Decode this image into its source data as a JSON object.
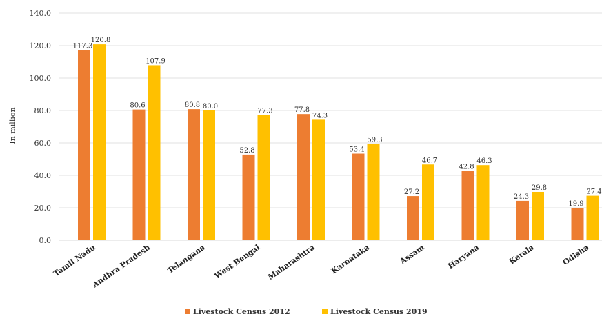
{
  "chart_data": {
    "type": "bar",
    "ylabel": "In million",
    "ylim": [
      0,
      140
    ],
    "yticks": [
      "0.0",
      "20.0",
      "40.0",
      "60.0",
      "80.0",
      "100.0",
      "120.0",
      "140.0"
    ],
    "grid": true,
    "legend_position": "bottom",
    "categories": [
      "Tamil Nadu",
      "Andhra Pradesh",
      "Telangana",
      "West Bengal",
      "Maharashtra",
      "Karnataka",
      "Assam",
      "Haryana",
      "Kerala",
      "Odisha"
    ],
    "series": [
      {
        "name": "Livestock Census 2012",
        "color": "#ED7D31",
        "values": [
          117.3,
          80.6,
          80.8,
          52.8,
          77.8,
          53.4,
          27.2,
          42.8,
          24.3,
          19.9
        ],
        "labels": [
          "117.3",
          "80.6",
          "80.8",
          "52.8",
          "77.8",
          "53.4",
          "27.2",
          "42.8",
          "24.3",
          "19.9"
        ]
      },
      {
        "name": "Livestock Census 2019",
        "color": "#FFC000",
        "values": [
          120.8,
          107.9,
          80.0,
          77.3,
          74.3,
          59.3,
          46.7,
          46.3,
          29.8,
          27.4
        ],
        "labels": [
          "120.8",
          "107.9",
          "80.0",
          "77.3",
          "74.3",
          "59.3",
          "46.7",
          "46.3",
          "29.8",
          "27.4"
        ]
      }
    ]
  }
}
